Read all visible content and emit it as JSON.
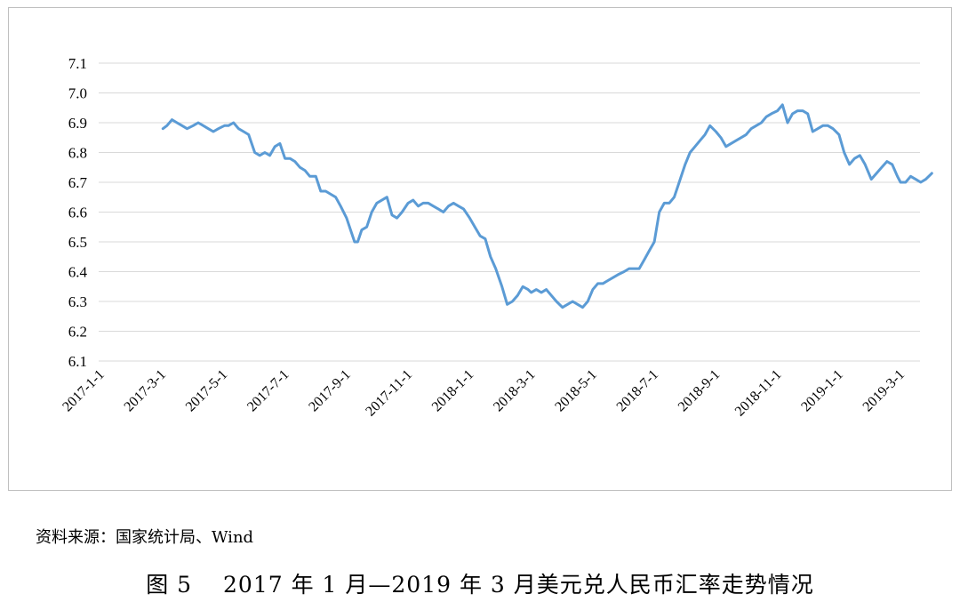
{
  "chart_data": {
    "type": "line",
    "title": "",
    "xlabel": "",
    "ylabel": "",
    "ylim": [
      6.1,
      7.1
    ],
    "yticks": [
      "6.1",
      "6.2",
      "6.3",
      "6.4",
      "6.5",
      "6.6",
      "6.7",
      "6.8",
      "6.9",
      "7.0",
      "7.1"
    ],
    "xticks": [
      "2017-1-1",
      "2017-3-1",
      "2017-5-1",
      "2017-7-1",
      "2017-9-1",
      "2017-11-1",
      "2018-1-1",
      "2018-3-1",
      "2018-5-1",
      "2018-7-1",
      "2018-9-1",
      "2018-11-1",
      "2019-1-1",
      "2019-3-1"
    ],
    "grid": true,
    "line_color": "#5b9bd5",
    "series": [
      {
        "x": [
          "2017-3-1",
          "2017-3-5",
          "2017-3-10",
          "2017-3-15",
          "2017-3-20",
          "2017-3-25",
          "2017-3-31",
          "2017-4-5",
          "2017-4-10",
          "2017-4-15",
          "2017-4-20",
          "2017-4-25",
          "2017-5-1",
          "2017-5-5",
          "2017-5-10",
          "2017-5-15",
          "2017-5-20",
          "2017-5-25",
          "2017-5-31",
          "2017-6-5",
          "2017-6-10",
          "2017-6-15",
          "2017-6-20",
          "2017-6-25",
          "2017-6-30",
          "2017-7-5",
          "2017-7-10",
          "2017-7-15",
          "2017-7-20",
          "2017-7-25",
          "2017-7-31",
          "2017-8-5",
          "2017-8-10",
          "2017-8-15",
          "2017-8-20",
          "2017-8-25",
          "2017-8-31",
          "2017-9-5",
          "2017-9-8",
          "2017-9-11",
          "2017-9-15",
          "2017-9-20",
          "2017-9-25",
          "2017-9-30",
          "2017-10-5",
          "2017-10-10",
          "2017-10-15",
          "2017-10-20",
          "2017-10-25",
          "2017-10-31",
          "2017-11-5",
          "2017-11-10",
          "2017-11-15",
          "2017-11-20",
          "2017-11-25",
          "2017-11-30",
          "2017-12-5",
          "2017-12-10",
          "2017-12-15",
          "2017-12-20",
          "2017-12-25",
          "2017-12-31",
          "2018-1-5",
          "2018-1-10",
          "2018-1-15",
          "2018-1-20",
          "2018-1-25",
          "2018-1-31",
          "2018-2-5",
          "2018-2-10",
          "2018-2-15",
          "2018-2-20",
          "2018-2-25",
          "2018-2-28",
          "2018-3-5",
          "2018-3-10",
          "2018-3-15",
          "2018-3-20",
          "2018-3-25",
          "2018-3-31",
          "2018-4-5",
          "2018-4-10",
          "2018-4-15",
          "2018-4-20",
          "2018-4-25",
          "2018-4-30",
          "2018-5-5",
          "2018-5-10",
          "2018-5-15",
          "2018-5-20",
          "2018-5-25",
          "2018-5-31",
          "2018-6-5",
          "2018-6-10",
          "2018-6-15",
          "2018-6-20",
          "2018-6-25",
          "2018-6-30",
          "2018-7-5",
          "2018-7-10",
          "2018-7-15",
          "2018-7-20",
          "2018-7-25",
          "2018-7-31",
          "2018-8-5",
          "2018-8-10",
          "2018-8-15",
          "2018-8-20",
          "2018-8-25",
          "2018-8-31",
          "2018-9-5",
          "2018-9-10",
          "2018-9-15",
          "2018-9-20",
          "2018-9-25",
          "2018-9-30",
          "2018-10-5",
          "2018-10-10",
          "2018-10-15",
          "2018-10-20",
          "2018-10-25",
          "2018-10-31",
          "2018-11-5",
          "2018-11-10",
          "2018-11-15",
          "2018-11-20",
          "2018-11-25",
          "2018-11-30",
          "2018-12-5",
          "2018-12-10",
          "2018-12-15",
          "2018-12-20",
          "2018-12-25",
          "2018-12-31",
          "2019-1-5",
          "2019-1-10",
          "2019-1-15",
          "2019-1-20",
          "2019-1-25",
          "2019-1-31",
          "2019-2-5",
          "2019-2-10",
          "2019-2-15",
          "2019-2-20",
          "2019-2-25",
          "2019-2-28",
          "2019-3-5",
          "2019-3-10",
          "2019-3-15",
          "2019-3-20",
          "2019-3-25",
          "2019-3-31"
        ],
        "y": [
          6.88,
          6.89,
          6.91,
          6.9,
          6.89,
          6.88,
          6.89,
          6.9,
          6.89,
          6.88,
          6.87,
          6.88,
          6.89,
          6.89,
          6.9,
          6.88,
          6.87,
          6.86,
          6.8,
          6.79,
          6.8,
          6.79,
          6.82,
          6.83,
          6.78,
          6.78,
          6.77,
          6.75,
          6.74,
          6.72,
          6.72,
          6.67,
          6.67,
          6.66,
          6.65,
          6.62,
          6.58,
          6.53,
          6.5,
          6.5,
          6.54,
          6.55,
          6.6,
          6.63,
          6.64,
          6.65,
          6.59,
          6.58,
          6.6,
          6.63,
          6.64,
          6.62,
          6.63,
          6.63,
          6.62,
          6.61,
          6.6,
          6.62,
          6.63,
          6.62,
          6.61,
          6.58,
          6.55,
          6.52,
          6.51,
          6.45,
          6.41,
          6.35,
          6.29,
          6.3,
          6.32,
          6.35,
          6.34,
          6.33,
          6.34,
          6.33,
          6.34,
          6.32,
          6.3,
          6.28,
          6.29,
          6.3,
          6.29,
          6.28,
          6.3,
          6.34,
          6.36,
          6.36,
          6.37,
          6.38,
          6.39,
          6.4,
          6.41,
          6.41,
          6.41,
          6.44,
          6.47,
          6.5,
          6.6,
          6.63,
          6.63,
          6.65,
          6.7,
          6.76,
          6.8,
          6.82,
          6.84,
          6.86,
          6.89,
          6.87,
          6.85,
          6.82,
          6.83,
          6.84,
          6.85,
          6.86,
          6.88,
          6.89,
          6.9,
          6.92,
          6.93,
          6.94,
          6.96,
          6.9,
          6.93,
          6.94,
          6.94,
          6.93,
          6.87,
          6.88,
          6.89,
          6.89,
          6.88,
          6.86,
          6.8,
          6.76,
          6.78,
          6.79,
          6.76,
          6.71,
          6.73,
          6.75,
          6.77,
          6.76,
          6.72,
          6.7,
          6.7,
          6.72,
          6.71,
          6.7,
          6.71,
          6.73
        ]
      }
    ]
  },
  "source_note": "资料来源：国家统计局、Wind",
  "caption": "图 5　 2017 年 1 月—2019 年 3 月美元兑人民币汇率走势情况"
}
